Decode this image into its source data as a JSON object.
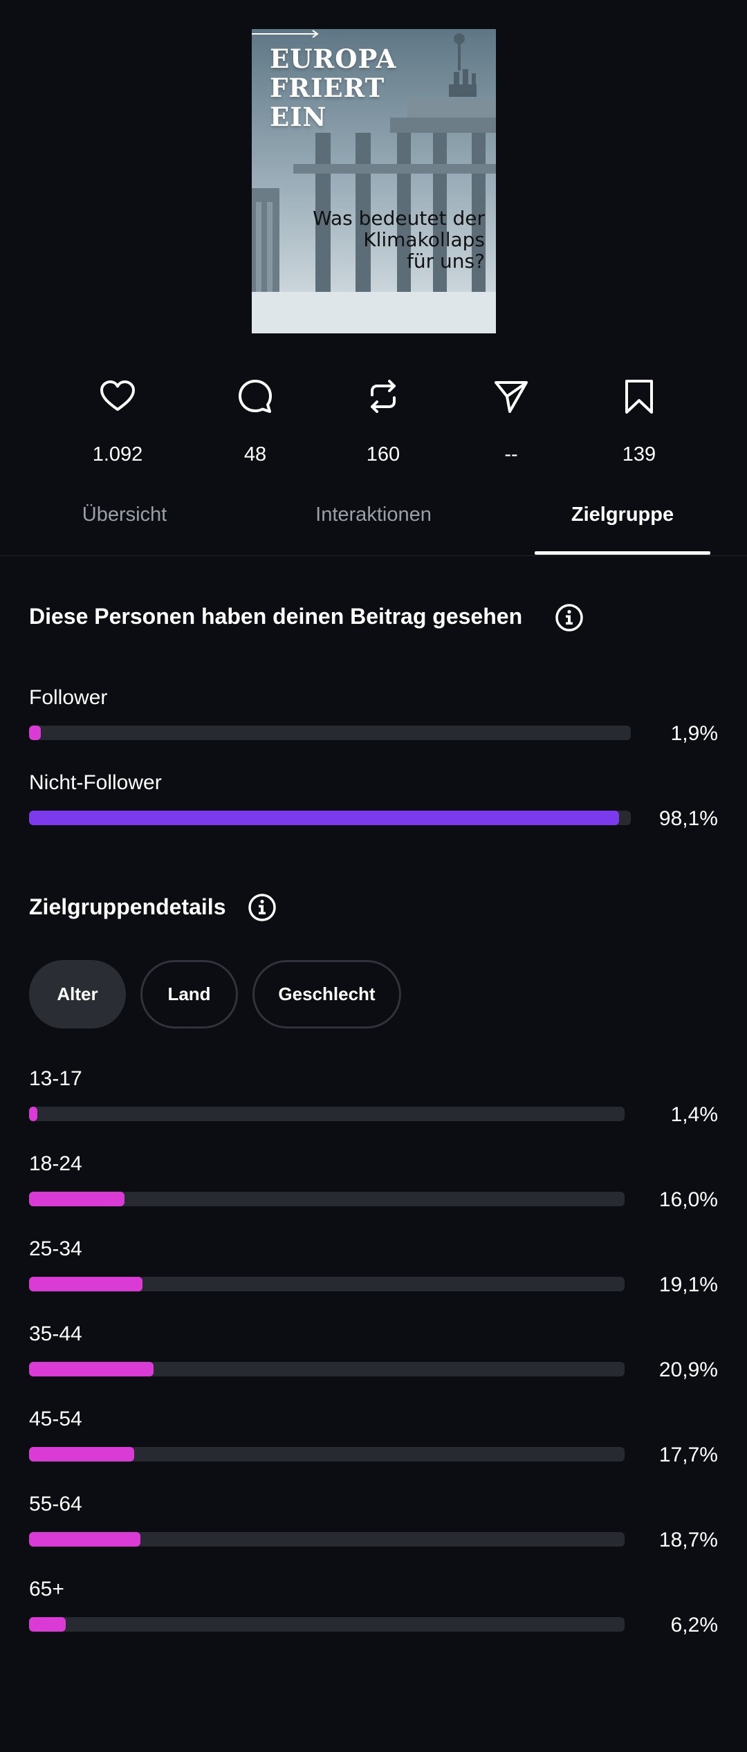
{
  "post": {
    "cover_title_lines": [
      "EUROPA",
      "FRIERT",
      "EIN"
    ],
    "cover_subtitle_lines": [
      "Was bedeutet der",
      "Klimakollaps",
      "für uns?"
    ]
  },
  "stats": {
    "likes": "1.092",
    "comments": "48",
    "reposts": "160",
    "shares": "--",
    "saves": "139",
    "icons": [
      "heart-icon",
      "comment-icon",
      "repost-icon",
      "share-icon",
      "bookmark-icon"
    ]
  },
  "tabs": [
    {
      "label": "Übersicht",
      "active": false
    },
    {
      "label": "Interaktionen",
      "active": false
    },
    {
      "label": "Zielgruppe",
      "active": true
    }
  ],
  "audience": {
    "title": "Diese Personen haben deinen Beitrag gesehen",
    "rows": [
      {
        "label": "Follower",
        "value": "1,9%",
        "fraction": 0.019,
        "color": "#d93bd4"
      },
      {
        "label": "Nicht-Follower",
        "value": "98,1%",
        "fraction": 0.981,
        "color": "#7c3aed"
      }
    ]
  },
  "details": {
    "title": "Zielgruppendetails",
    "filters": [
      {
        "label": "Alter",
        "active": true
      },
      {
        "label": "Land",
        "active": false
      },
      {
        "label": "Geschlecht",
        "active": false
      }
    ],
    "age_rows": [
      {
        "label": "13-17",
        "value": "1,4%",
        "fraction": 0.014
      },
      {
        "label": "18-24",
        "value": "16,0%",
        "fraction": 0.16
      },
      {
        "label": "25-34",
        "value": "19,1%",
        "fraction": 0.191
      },
      {
        "label": "35-44",
        "value": "20,9%",
        "fraction": 0.209
      },
      {
        "label": "45-54",
        "value": "17,7%",
        "fraction": 0.177
      },
      {
        "label": "55-64",
        "value": "18,7%",
        "fraction": 0.187
      },
      {
        "label": "65+",
        "value": "6,2%",
        "fraction": 0.062
      }
    ]
  },
  "colors": {
    "background": "#0b0d12",
    "accent_pink": "#d93bd4",
    "accent_purple": "#7c3aed",
    "track": "#272a31"
  }
}
